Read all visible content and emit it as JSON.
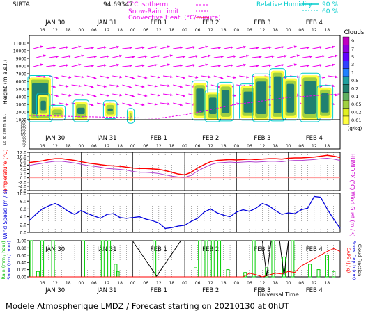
{
  "header": {
    "site": "SIRTA",
    "coords": "94.69347",
    "title": "Modele Atmospherique LMDZ / Forecast starting on 20210130 at 0hUT",
    "universal_time": "Universal Time"
  },
  "legend": {
    "zero_isotherm": "0°C isotherm",
    "snow_rain": "Snow-Rain Limit",
    "convective": "Convective Heat. (°C/minute)",
    "rh_label": "Relative Humidity",
    "rh_90": "90 %",
    "rh_60": "60 %"
  },
  "days": [
    "JAN 30",
    "JAN 31",
    "FEB 1",
    "FEB 2",
    "FEB 3",
    "FEB 4"
  ],
  "hour_ticks": [
    "06",
    "12",
    "18",
    "00"
  ],
  "colors": {
    "temp": "#ff0000",
    "humidex": "#b040d0",
    "wind": "#0000dd",
    "rain": "#00cc00",
    "cape": "#ff0000",
    "grid": "#000000",
    "ylabel_red": "#ff0000",
    "ylabel_blue": "#0000dd",
    "ylabel_magenta": "#cc00cc"
  },
  "panel1": {
    "ylabel": "Height (m a.s.l.)",
    "ylabel2": "Up to 200 m a.g.l.",
    "yticks": [
      "11000",
      "10000",
      "9000",
      "8000",
      "7000",
      "6000",
      "5000",
      "4000",
      "3000",
      "2000",
      "1000"
    ],
    "yticks_low": [
      "200",
      "180",
      "160",
      "140",
      "120",
      "100",
      "80",
      "60",
      "40",
      "20"
    ],
    "cloud_title": "Clouds",
    "cloud_levels": [
      "9",
      "7",
      "5",
      "3",
      "1",
      "0.5",
      "0.2",
      "0.1",
      "0.05",
      "0.02",
      "0.01"
    ],
    "cloud_unit": "(g/kg)",
    "cloud_colors": [
      "#c000c0",
      "#9000e0",
      "#6000ff",
      "#3040ff",
      "#2080ff",
      "#20a0a0",
      "#208070",
      "#60b060",
      "#a0d040",
      "#e0f020",
      "#ffff40"
    ]
  },
  "panel2": {
    "ylabel": "Temperature (°C)",
    "ylabel_right": "HUMIDEX (°C)",
    "yticks": [
      "12.0",
      "10.0",
      "8.0",
      "6.0",
      "4.0",
      "2.0",
      "0.0",
      "-2.0",
      "-4.0",
      "-6.0"
    ]
  },
  "panel3": {
    "ylabel": "Wind Speed (m / s)",
    "ylabel_right": "Wind Gust (m / s)",
    "yticks": [
      "10.0",
      "8.0",
      "6.0",
      "4.0",
      "2.0",
      "0.0"
    ]
  },
  "panel4": {
    "ylabel_left1": "Rain (mm / hour)",
    "ylabel_left2": "Snow (cm / hour)",
    "ylabel_right1": "CAPE (J / g)",
    "ylabel_right2": "Snow Depth (cm)",
    "ylabel_right3": "Cloud Fraction",
    "yticks": [
      "1.00",
      "0.80",
      "0.60",
      "0.40",
      "0.20",
      "0.00"
    ]
  },
  "chart_data": {
    "type": "line",
    "time_hours_from_start": [
      0,
      3,
      6,
      9,
      12,
      15,
      18,
      21,
      24,
      27,
      30,
      33,
      36,
      39,
      42,
      45,
      48,
      51,
      54,
      57,
      60,
      63,
      66,
      69,
      72,
      75,
      78,
      81,
      84,
      87,
      90,
      93,
      96,
      99,
      102,
      105,
      108,
      111,
      114,
      117,
      120,
      123,
      126,
      129,
      132,
      135,
      138,
      141,
      144
    ],
    "series": [
      {
        "name": "Temperature",
        "values": [
          7.2,
          7.6,
          8.0,
          8.6,
          9.0,
          9.0,
          8.6,
          8.2,
          7.6,
          7.0,
          6.6,
          6.2,
          5.8,
          5.6,
          5.4,
          5.0,
          4.6,
          4.4,
          4.4,
          4.2,
          4.0,
          3.4,
          2.6,
          1.8,
          1.4,
          2.6,
          4.6,
          6.2,
          7.6,
          8.2,
          8.4,
          8.6,
          8.4,
          8.6,
          8.8,
          8.6,
          8.8,
          9.0,
          9.0,
          8.8,
          9.2,
          9.4,
          9.4,
          9.6,
          9.8,
          10.2,
          10.6,
          10.2,
          9.6
        ]
      },
      {
        "name": "Humidex",
        "values": [
          5.8,
          6.4,
          6.8,
          7.4,
          7.8,
          7.8,
          7.4,
          7.0,
          6.4,
          5.8,
          5.4,
          5.0,
          4.4,
          4.2,
          4.0,
          3.6,
          3.0,
          2.6,
          2.6,
          2.4,
          2.0,
          1.4,
          0.8,
          0.4,
          0.2,
          1.2,
          3.2,
          4.8,
          6.2,
          7.0,
          7.2,
          7.4,
          7.2,
          7.4,
          7.6,
          7.4,
          7.6,
          7.8,
          7.8,
          7.6,
          8.0,
          8.2,
          8.2,
          8.4,
          8.6,
          9.0,
          9.2,
          8.8,
          8.2
        ]
      },
      {
        "name": "Wind Speed",
        "values": [
          3.0,
          4.6,
          6.0,
          6.8,
          7.4,
          6.6,
          5.4,
          4.6,
          5.6,
          4.8,
          4.2,
          3.6,
          4.6,
          4.8,
          3.8,
          3.6,
          3.8,
          4.0,
          3.4,
          3.0,
          2.4,
          1.0,
          1.2,
          1.6,
          1.8,
          2.8,
          3.6,
          5.2,
          6.0,
          5.0,
          4.4,
          4.0,
          5.2,
          5.8,
          5.4,
          6.2,
          7.4,
          6.8,
          5.6,
          4.6,
          5.0,
          4.8,
          5.8,
          6.2,
          9.2,
          9.0,
          6.0,
          3.4,
          1.0
        ]
      },
      {
        "name": "CAPE",
        "values": [
          0,
          0,
          0,
          0,
          0,
          0,
          0,
          0,
          0,
          0,
          0,
          0,
          0,
          0,
          0,
          0,
          0,
          0,
          0,
          0,
          0,
          0,
          0,
          0,
          0,
          0,
          0,
          0,
          0,
          0,
          0,
          0,
          0,
          0,
          0.1,
          0.06,
          0,
          0.05,
          0.1,
          0.08,
          0.15,
          0.12,
          0.3,
          0.4,
          0.5,
          0.6,
          0.7,
          0.78,
          0.7
        ]
      }
    ],
    "rain_bars": [
      {
        "h": 1,
        "v": 1.0
      },
      {
        "h": 4,
        "v": 0.15
      },
      {
        "h": 6,
        "v": 1.0
      },
      {
        "h": 11,
        "v": 1.0
      },
      {
        "h": 25,
        "v": 1.0
      },
      {
        "h": 34,
        "v": 1.0
      },
      {
        "h": 37,
        "v": 1.0
      },
      {
        "h": 40,
        "v": 0.35
      },
      {
        "h": 41,
        "v": 0.15
      },
      {
        "h": 58,
        "v": 1.0
      },
      {
        "h": 77,
        "v": 0.25
      },
      {
        "h": 79,
        "v": 1.0
      },
      {
        "h": 82,
        "v": 1.0
      },
      {
        "h": 85,
        "v": 1.0
      },
      {
        "h": 88,
        "v": 1.0
      },
      {
        "h": 92,
        "v": 0.2
      },
      {
        "h": 100,
        "v": 0.12
      },
      {
        "h": 104,
        "v": 1.0
      },
      {
        "h": 110,
        "v": 0.25
      },
      {
        "h": 113,
        "v": 1.0
      },
      {
        "h": 118,
        "v": 0.55
      },
      {
        "h": 122,
        "v": 1.0
      },
      {
        "h": 130,
        "v": 0.35
      },
      {
        "h": 134,
        "v": 0.2
      },
      {
        "h": 138,
        "v": 0.6
      },
      {
        "h": 141,
        "v": 0.15
      }
    ],
    "ylim_temperature": [
      -6,
      12
    ],
    "ylim_wind": [
      0,
      10
    ],
    "ylim_rain": [
      0,
      1
    ],
    "xlim_hours": [
      0,
      144
    ],
    "xlabel": "Universal Time"
  }
}
